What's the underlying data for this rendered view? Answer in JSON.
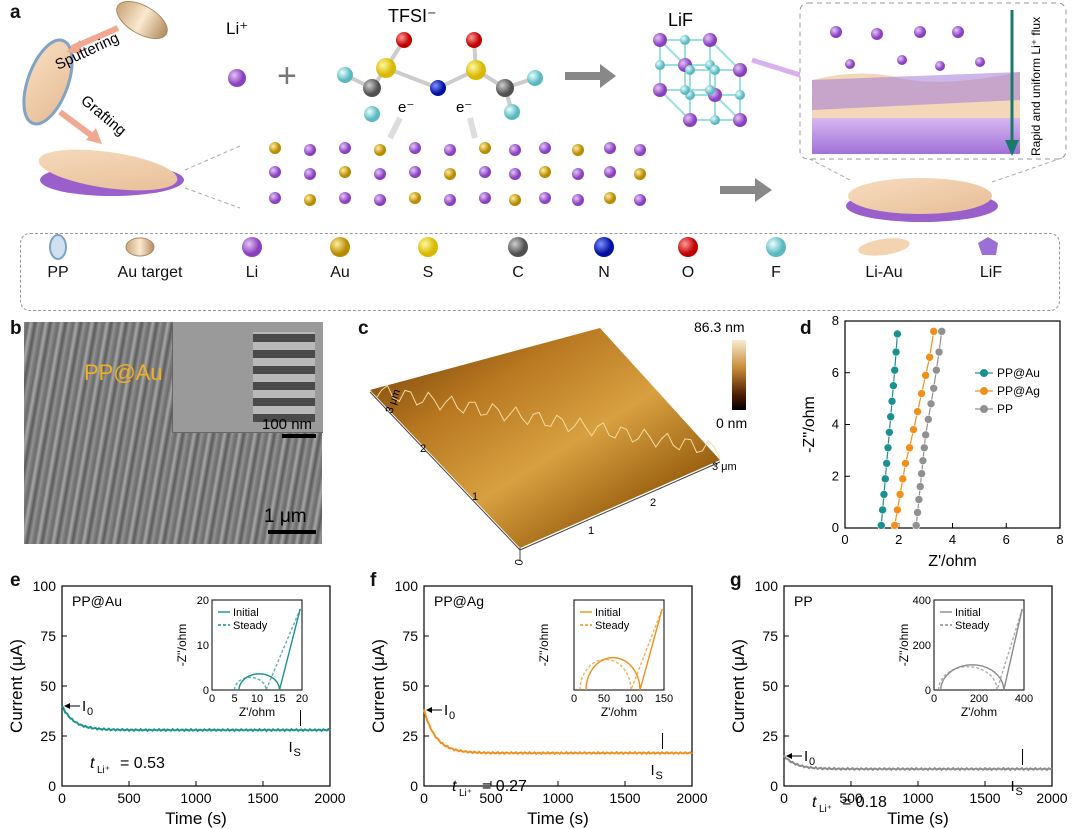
{
  "panel_labels": [
    "a",
    "b",
    "c",
    "d",
    "e",
    "f",
    "g"
  ],
  "panel_a": {
    "sputtering": "Sputtering",
    "grafting": "Grafting",
    "li_ion": "Li⁺",
    "plus": "+",
    "tfsi": "TFSI⁻",
    "electron": "e⁻",
    "lif": "LiF",
    "flux": "Rapid and uniform Li⁺ flux",
    "legend": [
      {
        "label": "PP",
        "icon": "pp-disk-icon"
      },
      {
        "label": "Au target",
        "icon": "au-target-icon"
      },
      {
        "label": "Li",
        "icon": "li-atom-icon",
        "color": "#9b59c9"
      },
      {
        "label": "Au",
        "icon": "au-atom-icon",
        "color": "#d4a017"
      },
      {
        "label": "S",
        "icon": "s-atom-icon",
        "color": "#f0d000"
      },
      {
        "label": "C",
        "icon": "c-atom-icon",
        "color": "#707070"
      },
      {
        "label": "N",
        "icon": "n-atom-icon",
        "color": "#1a2ad6"
      },
      {
        "label": "O",
        "icon": "o-atom-icon",
        "color": "#e02020"
      },
      {
        "label": "F",
        "icon": "f-atom-icon",
        "color": "#7fd6d6"
      },
      {
        "label": "Li-Au",
        "icon": "li-au-flake-icon",
        "color": "#f3d3b0"
      },
      {
        "label": "LiF",
        "icon": "lif-crystal-icon",
        "color": "#9b6fd6"
      }
    ]
  },
  "panel_b": {
    "title": "PP@Au",
    "scale_large": "1 μm",
    "scale_small": "100 nm"
  },
  "panel_c": {
    "max": "86.3 nm",
    "min": "0 nm",
    "axis_ticks": [
      "0",
      "1",
      "2",
      "3 μm"
    ]
  },
  "chart_data": [
    {
      "type": "scatter",
      "id": "d",
      "xlabel": "Z'/ohm",
      "ylabel": "-Z''/ohm",
      "xlim": [
        0,
        8
      ],
      "ylim": [
        0,
        8
      ],
      "xticks": [
        "0",
        "2",
        "4",
        "6",
        "8"
      ],
      "yticks": [
        "0",
        "2",
        "4",
        "6",
        "8"
      ],
      "series": [
        {
          "name": "PP@Au",
          "color": "#1a9090",
          "x": [
            1.35,
            1.4,
            1.45,
            1.5,
            1.55,
            1.6,
            1.65,
            1.7,
            1.75,
            1.8,
            1.85,
            1.9,
            1.95
          ],
          "y": [
            0.1,
            0.7,
            1.3,
            1.9,
            2.5,
            3.1,
            3.7,
            4.3,
            4.9,
            5.5,
            6.1,
            6.8,
            7.5
          ]
        },
        {
          "name": "PP@Ag",
          "color": "#f0901a",
          "x": [
            1.85,
            1.95,
            2.05,
            2.15,
            2.25,
            2.4,
            2.55,
            2.7,
            2.85,
            3.0,
            3.15,
            3.3
          ],
          "y": [
            0.1,
            0.7,
            1.3,
            1.9,
            2.5,
            3.1,
            3.8,
            4.5,
            5.2,
            5.9,
            6.6,
            7.6
          ]
        },
        {
          "name": "PP",
          "color": "#909090",
          "x": [
            2.65,
            2.7,
            2.75,
            2.8,
            2.85,
            2.9,
            2.95,
            3.0,
            3.1,
            3.2,
            3.3,
            3.4,
            3.5,
            3.6
          ],
          "y": [
            0.1,
            0.6,
            1.1,
            1.6,
            2.1,
            2.6,
            3.1,
            3.6,
            4.2,
            4.8,
            5.4,
            6.1,
            6.8,
            7.6
          ]
        }
      ]
    },
    {
      "type": "line",
      "id": "e",
      "title": "PP@Au",
      "xlabel": "Time (s)",
      "ylabel": "Current (μA)",
      "xlim": [
        0,
        2000
      ],
      "ylim": [
        0,
        100
      ],
      "xticks": [
        "0",
        "500",
        "1000",
        "1500",
        "2000"
      ],
      "yticks": [
        "0",
        "25",
        "50",
        "75",
        "100"
      ],
      "color": "#1a9090",
      "i0": 40,
      "is": 28,
      "t_label": "t",
      "t_sub": "Li⁺",
      "t_value": "= 0.53",
      "i0_label": "I",
      "i0_sub": "0",
      "is_label": "I",
      "is_sub": "S",
      "inset": {
        "xlabel": "Z'/ohm",
        "ylabel": "-Z''/ohm",
        "xlim": [
          0,
          20
        ],
        "ylim": [
          0,
          20
        ],
        "xticks": [
          "0",
          "5",
          "10",
          "15",
          "20"
        ],
        "yticks": [
          "0",
          "10",
          "20"
        ],
        "legend": [
          "Initial",
          "Steady"
        ],
        "arc_initial": [
          6,
          15
        ],
        "arc_steady": [
          5,
          12
        ]
      }
    },
    {
      "type": "line",
      "id": "f",
      "title": "PP@Ag",
      "xlabel": "Time (s)",
      "ylabel": "Current (μA)",
      "xlim": [
        0,
        2000
      ],
      "ylim": [
        0,
        100
      ],
      "xticks": [
        "0",
        "500",
        "1000",
        "1500",
        "2000"
      ],
      "yticks": [
        "0",
        "25",
        "50",
        "75",
        "100"
      ],
      "color": "#f0901a",
      "i0": 38,
      "is": 16.5,
      "t_label": "t",
      "t_sub": "Li⁺",
      "t_value": "= 0.27",
      "i0_label": "I",
      "i0_sub": "0",
      "is_label": "I",
      "is_sub": "S",
      "inset": {
        "xlabel": "Z'/ohm",
        "ylabel": "-Z''/ohm",
        "xlim": [
          0,
          150
        ],
        "ylim": [
          0,
          100
        ],
        "xticks": [
          "0",
          "50",
          "100",
          "150"
        ],
        "yticks": [],
        "legend": [
          "Initial",
          "Steady"
        ],
        "arc_initial": [
          20,
          110
        ],
        "arc_steady": [
          10,
          95
        ]
      }
    },
    {
      "type": "line",
      "id": "g",
      "title": "PP",
      "xlabel": "Time (s)",
      "ylabel": "Current (μA)",
      "xlim": [
        0,
        2000
      ],
      "ylim": [
        0,
        100
      ],
      "xticks": [
        "0",
        "500",
        "1000",
        "1500",
        "2000"
      ],
      "yticks": [
        "0",
        "25",
        "50",
        "75",
        "100"
      ],
      "color": "#8a8a8a",
      "i0": 15,
      "is": 8.5,
      "t_label": "t",
      "t_sub": "Li⁺",
      "t_value": "= 0.18",
      "i0_label": "I",
      "i0_sub": "0",
      "is_label": "I",
      "is_sub": "S",
      "inset": {
        "xlabel": "Z'/ohm",
        "ylabel": "-Z''/ohm",
        "xlim": [
          0,
          400
        ],
        "ylim": [
          0,
          400
        ],
        "xticks": [
          "0",
          "200",
          "400"
        ],
        "yticks": [
          "0",
          "200",
          "400"
        ],
        "legend": [
          "Initial",
          "Steady"
        ],
        "arc_initial": [
          30,
          310
        ],
        "arc_steady": [
          20,
          280
        ]
      }
    }
  ]
}
